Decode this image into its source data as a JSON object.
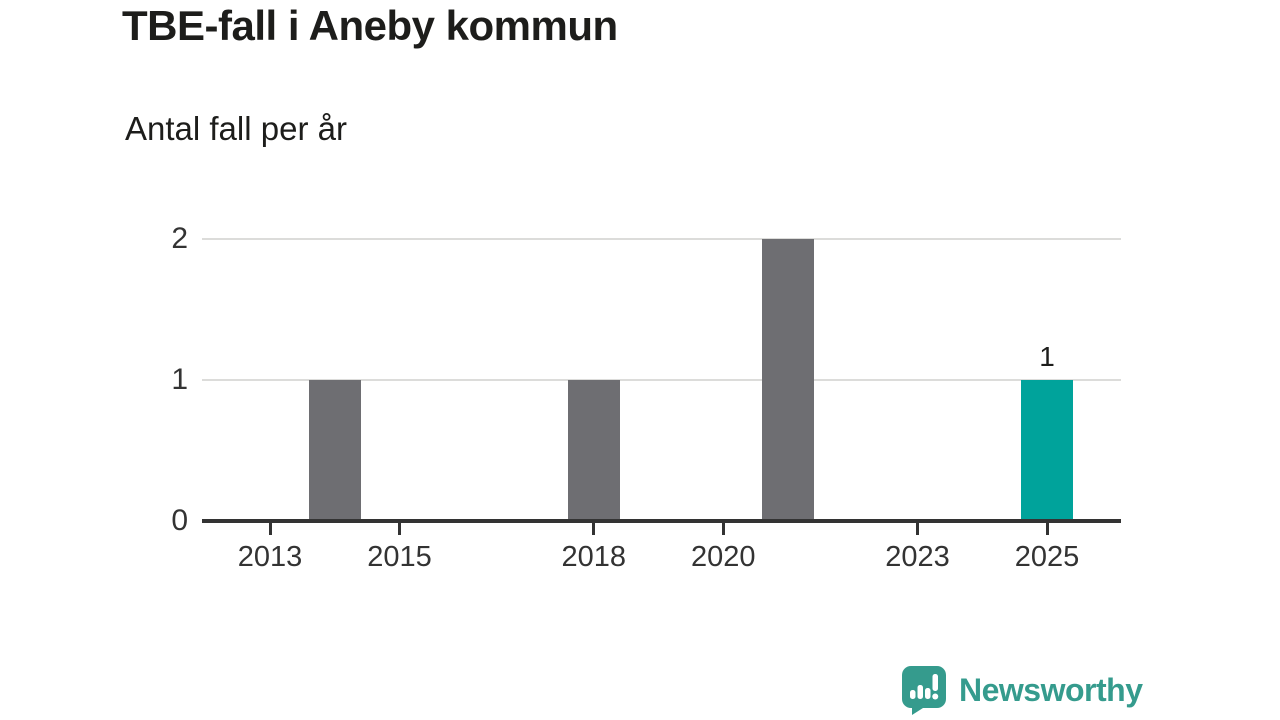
{
  "chart_data": {
    "type": "bar",
    "title": "TBE-fall i Aneby kommun",
    "subtitle": "Antal fall per år",
    "categories": [
      2013,
      2014,
      2015,
      2016,
      2017,
      2018,
      2019,
      2020,
      2021,
      2022,
      2023,
      2024,
      2025
    ],
    "values": [
      0,
      1,
      0,
      0,
      0,
      1,
      0,
      0,
      2,
      0,
      0,
      0,
      1
    ],
    "highlight_year": 2025,
    "bar_labels": {
      "2025": "1"
    },
    "xticks": [
      2013,
      2015,
      2018,
      2020,
      2023,
      2025
    ],
    "yticks": [
      0,
      1,
      2
    ],
    "ylim": [
      0,
      2
    ],
    "xlabel": "",
    "ylabel": "",
    "grid": "horizontal",
    "legend": "none",
    "colors": {
      "bar_default": "#6E6E72",
      "bar_highlight": "#00A39B",
      "gridline": "#DCDCDA",
      "axis": "#333333",
      "tick_label": "#333333",
      "title_text": "#1D1D1B",
      "bar_label_text": "#1D1D1B"
    }
  },
  "branding": {
    "name": "Newsworthy",
    "color": "#359B8D",
    "icon": "newsworthy-speech-bubble-bar-chart-icon"
  }
}
